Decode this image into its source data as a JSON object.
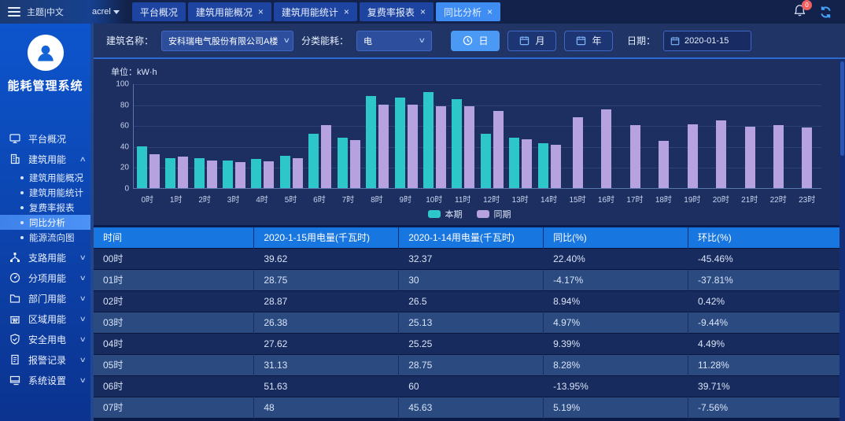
{
  "topbar": {
    "menu_label": "主题|中文",
    "user": "acrel",
    "notification_count": "0",
    "tabs": [
      {
        "label": "平台概况",
        "closable": false,
        "active": false
      },
      {
        "label": "建筑用能概况",
        "closable": true,
        "active": false
      },
      {
        "label": "建筑用能统计",
        "closable": true,
        "active": false
      },
      {
        "label": "复费率报表",
        "closable": true,
        "active": false
      },
      {
        "label": "同比分析",
        "closable": true,
        "active": true
      }
    ]
  },
  "sidebar": {
    "system_title": "能耗管理系统",
    "items": [
      {
        "label": "平台概况",
        "icon": "monitor-icon",
        "expandable": false,
        "expanded": false
      },
      {
        "label": "建筑用能",
        "icon": "building-icon",
        "expandable": true,
        "expanded": true,
        "children": [
          {
            "label": "建筑用能概况",
            "active": false
          },
          {
            "label": "建筑用能统计",
            "active": false
          },
          {
            "label": "复费率报表",
            "active": false
          },
          {
            "label": "同比分析",
            "active": true
          },
          {
            "label": "能源流向图",
            "active": false
          }
        ]
      },
      {
        "label": "支路用能",
        "icon": "branch-icon",
        "expandable": true,
        "expanded": false
      },
      {
        "label": "分项用能",
        "icon": "gauge-icon",
        "expandable": true,
        "expanded": false
      },
      {
        "label": "部门用能",
        "icon": "folder-icon",
        "expandable": true,
        "expanded": false
      },
      {
        "label": "区域用能",
        "icon": "region-icon",
        "expandable": true,
        "expanded": false
      },
      {
        "label": "安全用电",
        "icon": "shield-icon",
        "expandable": true,
        "expanded": false
      },
      {
        "label": "报警记录",
        "icon": "report-icon",
        "expandable": true,
        "expanded": false
      },
      {
        "label": "系统设置",
        "icon": "settings-icon",
        "expandable": true,
        "expanded": false
      }
    ]
  },
  "filters": {
    "building_label": "建筑名称：",
    "building_value": "安科瑞电气股份有限公司A楼",
    "energy_label": "分类能耗：",
    "energy_value": "电",
    "period_buttons": [
      {
        "label": "日",
        "icon": "clock-icon",
        "active": true
      },
      {
        "label": "月",
        "icon": "calendar-icon",
        "active": false
      },
      {
        "label": "年",
        "icon": "calendar-icon",
        "active": false
      }
    ],
    "date_label": "日期：",
    "date_value": "2020-01-15"
  },
  "chart_data": {
    "type": "bar",
    "unit_label": "单位：kW·h",
    "categories": [
      "0时",
      "1时",
      "2时",
      "3时",
      "4时",
      "5时",
      "6时",
      "7时",
      "8时",
      "9时",
      "10时",
      "11时",
      "12时",
      "13时",
      "14时",
      "15时",
      "16时",
      "17时",
      "18时",
      "19时",
      "20时",
      "21时",
      "22时",
      "23时"
    ],
    "series": [
      {
        "name": "本期",
        "color": "#2ec7c9",
        "values": [
          39.62,
          28.75,
          28.87,
          26.38,
          27.62,
          31.13,
          51.63,
          48,
          88,
          86.5,
          92,
          85,
          52,
          48.5,
          43,
          null,
          null,
          null,
          null,
          null,
          null,
          null,
          null,
          null
        ]
      },
      {
        "name": "同期",
        "color": "#b6a2de",
        "values": [
          32.37,
          30,
          26.5,
          25.13,
          25.25,
          28.75,
          60,
          45.63,
          80,
          80,
          78.5,
          78.5,
          74,
          46.5,
          41.5,
          68,
          75.5,
          60,
          45.5,
          61,
          65,
          59,
          60,
          58
        ]
      }
    ],
    "ylim": [
      0,
      100
    ],
    "yticks": [
      0,
      20,
      40,
      60,
      80,
      100
    ],
    "grid": true,
    "legend_position": "bottom"
  },
  "table": {
    "columns": [
      "时间",
      "2020-1-15用电量(千瓦时)",
      "2020-1-14用电量(千瓦时)",
      "同比(%)",
      "环比(%)"
    ],
    "rows": [
      [
        "00时",
        "39.62",
        "32.37",
        "22.40%",
        "-45.46%"
      ],
      [
        "01时",
        "28.75",
        "30",
        "-4.17%",
        "-37.81%"
      ],
      [
        "02时",
        "28.87",
        "26.5",
        "8.94%",
        "0.42%"
      ],
      [
        "03时",
        "26.38",
        "25.13",
        "4.97%",
        "-9.44%"
      ],
      [
        "04时",
        "27.62",
        "25.25",
        "9.39%",
        "4.49%"
      ],
      [
        "05时",
        "31.13",
        "28.75",
        "8.28%",
        "11.28%"
      ],
      [
        "06时",
        "51.63",
        "60",
        "-13.95%",
        "39.71%"
      ],
      [
        "07时",
        "48",
        "45.63",
        "5.19%",
        "-7.56%"
      ]
    ]
  },
  "colors": {
    "accent": "#3f8df2",
    "sidebar_top": "#0d55cd",
    "table_header": "#1876e0",
    "series_current": "#2ec7c9",
    "series_previous": "#b6a2de",
    "badge": "#f25f5f"
  }
}
